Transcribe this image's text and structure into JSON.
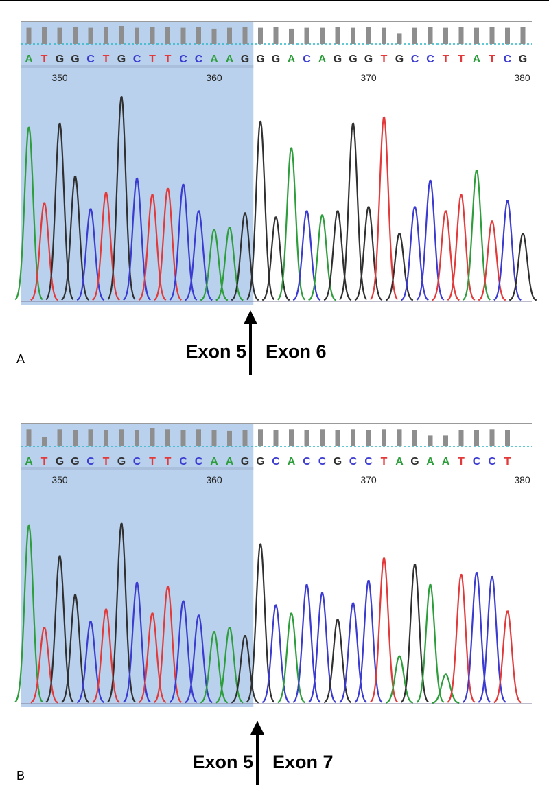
{
  "colors": {
    "A": "#2e9e3c",
    "C": "#3b3bd1",
    "G": "#303030",
    "T": "#e23a3a",
    "highlight": "#b9d1ec",
    "quality_bar": "#8e8e8e",
    "quality_threshold": "#2ab8c8"
  },
  "panels": [
    {
      "letter": "A",
      "left_label": "Exon 5",
      "right_label": "Exon 6"
    },
    {
      "letter": "B",
      "left_label": "Exon 5",
      "right_label": "Exon 7"
    }
  ],
  "chart_data": [
    {
      "type": "chromatogram",
      "panel": "A",
      "sequence": "ATGGCTGCTTCCAAGGGACAGGGTGCCTTATCG",
      "x": [
        348,
        349,
        350,
        351,
        352,
        353,
        354,
        355,
        356,
        357,
        358,
        359,
        360,
        361,
        362,
        363,
        364,
        365,
        366,
        367,
        368,
        369,
        370,
        371,
        372,
        373,
        374,
        375,
        376,
        377,
        378,
        379,
        380
      ],
      "peak_heights": [
        0.85,
        0.48,
        0.87,
        0.61,
        0.45,
        0.53,
        1.0,
        0.6,
        0.52,
        0.55,
        0.57,
        0.44,
        0.35,
        0.36,
        0.43,
        0.88,
        0.41,
        0.75,
        0.44,
        0.42,
        0.44,
        0.87,
        0.46,
        0.9,
        0.33,
        0.46,
        0.59,
        0.44,
        0.52,
        0.64,
        0.39,
        0.49,
        0.33
      ],
      "quality": [
        0.9,
        0.95,
        0.9,
        0.95,
        0.9,
        0.95,
        1.0,
        0.9,
        0.95,
        0.95,
        0.9,
        0.95,
        0.85,
        0.9,
        0.95,
        0.9,
        0.95,
        0.85,
        0.9,
        0.9,
        0.95,
        0.9,
        0.95,
        0.9,
        0.6,
        0.9,
        0.95,
        0.9,
        0.95,
        0.9,
        0.95,
        0.9,
        0.95
      ],
      "position_ticks": [
        350,
        360,
        370,
        380
      ],
      "highlight_through": 362,
      "junction_after": 362
    },
    {
      "type": "chromatogram",
      "panel": "B",
      "sequence": "ATGGCTGCTTCCAAGGCACCGCCTAGAATCCT",
      "x": [
        348,
        349,
        350,
        351,
        352,
        353,
        354,
        355,
        356,
        357,
        358,
        359,
        360,
        361,
        362,
        363,
        364,
        365,
        366,
        367,
        368,
        369,
        370,
        371,
        372,
        373,
        374,
        375,
        376,
        377,
        378,
        379
      ],
      "peak_heights": [
        0.87,
        0.37,
        0.72,
        0.53,
        0.4,
        0.46,
        0.88,
        0.59,
        0.44,
        0.57,
        0.5,
        0.43,
        0.35,
        0.37,
        0.33,
        0.78,
        0.48,
        0.44,
        0.58,
        0.54,
        0.41,
        0.49,
        0.6,
        0.71,
        0.23,
        0.68,
        0.58,
        0.14,
        0.63,
        0.64,
        0.62,
        0.45
      ],
      "quality": [
        0.95,
        0.5,
        0.95,
        0.9,
        0.95,
        0.9,
        0.95,
        0.9,
        1.0,
        0.95,
        0.9,
        0.95,
        0.9,
        0.85,
        0.9,
        0.95,
        0.9,
        0.95,
        0.9,
        0.95,
        0.9,
        0.95,
        0.9,
        0.95,
        0.95,
        0.9,
        0.6,
        0.6,
        0.9,
        0.9,
        0.95,
        0.9
      ],
      "position_ticks": [
        350,
        360,
        370,
        380
      ],
      "highlight_through": 362,
      "junction_after": 362
    }
  ]
}
